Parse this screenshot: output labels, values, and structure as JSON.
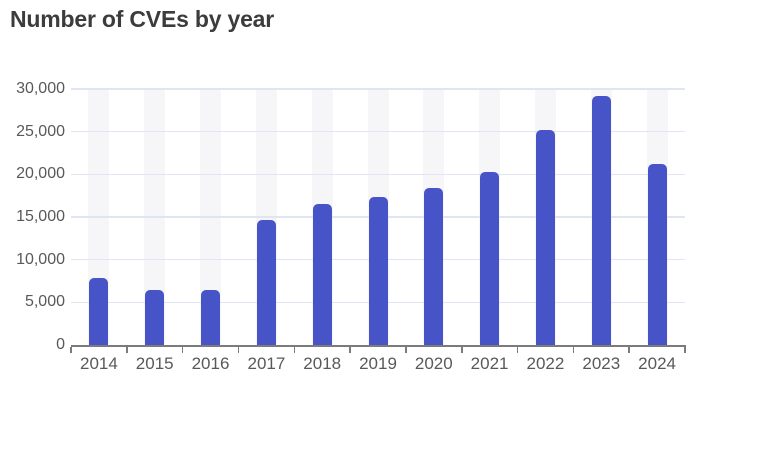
{
  "chart_data": {
    "type": "bar",
    "title": "Number of CVEs by year",
    "categories": [
      "2014",
      "2015",
      "2016",
      "2017",
      "2018",
      "2019",
      "2020",
      "2021",
      "2022",
      "2023",
      "2024"
    ],
    "values": [
      7900,
      6500,
      6450,
      14600,
      16500,
      17350,
      18400,
      20250,
      25200,
      29200,
      21200
    ],
    "series_name": "Number of CVEs",
    "xlabel": "",
    "ylabel": "",
    "ylim": [
      0,
      30000
    ],
    "ytick_step": 5000,
    "ytick_labels": [
      "0",
      "5,000",
      "10,000",
      "15,000",
      "20,000",
      "25,000",
      "30,000"
    ],
    "grid": "horizontal gridlines only, light column stripes behind bars",
    "legend": "none",
    "bar_style": "rounded top corners",
    "colors": {
      "bar": "#4754c7",
      "grid": "#dfe5f2",
      "stripe": "#f6f6f8",
      "axis": "#7b7b7b",
      "tick_label": "#595959",
      "title": "#3c3c3c",
      "background": "#ffffff"
    }
  }
}
